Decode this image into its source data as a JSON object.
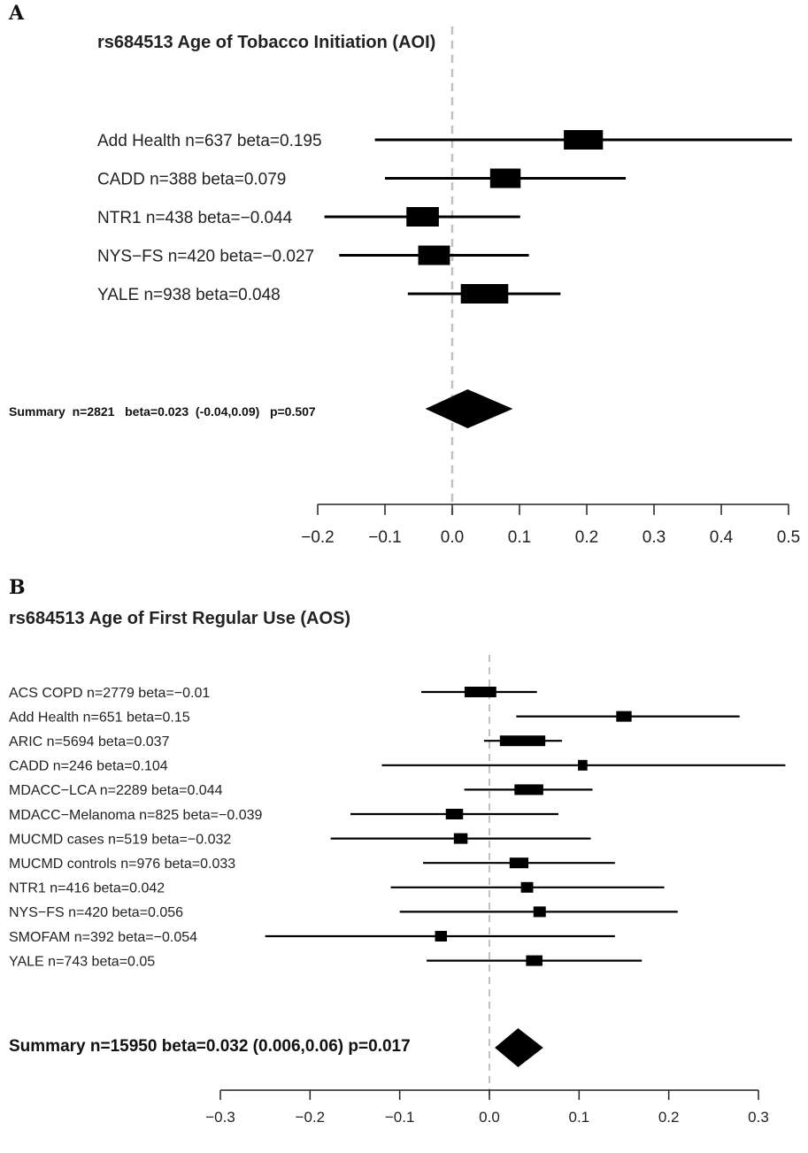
{
  "chart_data": [
    {
      "type": "forest",
      "panel": "A",
      "title": "rs684513 Age of Tobacco Initiation (AOI)",
      "xlim": [
        -0.2,
        0.5
      ],
      "ticks": [
        "−0.2",
        "−0.1",
        "0.0",
        "0.1",
        "0.2",
        "0.3",
        "0.4",
        "0.5"
      ],
      "reference_line": 0.0,
      "studies": [
        {
          "label": "Add Health n=637 beta=0.195",
          "n": 637,
          "beta": 0.195,
          "ci": [
            -0.115,
            0.505
          ]
        },
        {
          "label": "CADD n=388 beta=0.079",
          "n": 388,
          "beta": 0.079,
          "ci": [
            -0.1,
            0.258
          ]
        },
        {
          "label": "NTR1 n=438 beta=−0.044",
          "n": 438,
          "beta": -0.044,
          "ci": [
            -0.19,
            0.101
          ]
        },
        {
          "label": "NYS−FS n=420 beta=−0.027",
          "n": 420,
          "beta": -0.027,
          "ci": [
            -0.168,
            0.114
          ]
        },
        {
          "label": "YALE n=938 beta=0.048",
          "n": 938,
          "beta": 0.048,
          "ci": [
            -0.066,
            0.161
          ]
        }
      ],
      "summary": {
        "label": "Summary  n=2821   beta=0.023  (-0.04,0.09)   p=0.507",
        "n": 2821,
        "beta": 0.023,
        "ci": [
          -0.04,
          0.09
        ],
        "p": 0.507
      }
    },
    {
      "type": "forest",
      "panel": "B",
      "title": "rs684513 Age of First Regular Use (AOS)",
      "xlim": [
        -0.3,
        0.3
      ],
      "ticks": [
        "−0.3",
        "−0.2",
        "−0.1",
        "0.0",
        "0.1",
        "0.2",
        "0.3"
      ],
      "reference_line": 0.0,
      "studies": [
        {
          "label": "ACS COPD n=2779 beta=−0.01",
          "n": 2779,
          "beta": -0.01,
          "ci": [
            -0.076,
            0.053
          ]
        },
        {
          "label": "Add Health n=651 beta=0.15",
          "n": 651,
          "beta": 0.15,
          "ci": [
            0.03,
            0.279
          ]
        },
        {
          "label": "ARIC n=5694 beta=0.037",
          "n": 5694,
          "beta": 0.037,
          "ci": [
            -0.006,
            0.081
          ]
        },
        {
          "label": "CADD n=246 beta=0.104",
          "n": 246,
          "beta": 0.104,
          "ci": [
            -0.12,
            0.33
          ]
        },
        {
          "label": "MDACC−LCA n=2289 beta=0.044",
          "n": 2289,
          "beta": 0.044,
          "ci": [
            -0.028,
            0.115
          ]
        },
        {
          "label": "MDACC−Melanoma n=825 beta=−0.039",
          "n": 825,
          "beta": -0.039,
          "ci": [
            -0.155,
            0.077
          ]
        },
        {
          "label": "MUCMD cases n=519 beta=−0.032",
          "n": 519,
          "beta": -0.032,
          "ci": [
            -0.177,
            0.113
          ]
        },
        {
          "label": "MUCMD controls n=976 beta=0.033",
          "n": 976,
          "beta": 0.033,
          "ci": [
            -0.074,
            0.14
          ]
        },
        {
          "label": "NTR1 n=416 beta=0.042",
          "n": 416,
          "beta": 0.042,
          "ci": [
            -0.11,
            0.195
          ]
        },
        {
          "label": "NYS−FS n=420 beta=0.056",
          "n": 420,
          "beta": 0.056,
          "ci": [
            -0.1,
            0.21
          ]
        },
        {
          "label": "SMOFAM n=392 beta=−0.054",
          "n": 392,
          "beta": -0.054,
          "ci": [
            -0.25,
            0.14
          ]
        },
        {
          "label": "YALE n=743 beta=0.05",
          "n": 743,
          "beta": 0.05,
          "ci": [
            -0.07,
            0.17
          ]
        }
      ],
      "summary": {
        "label": "Summary n=15950 beta=0.032 (0.006,0.06) p=0.017",
        "n": 15950,
        "beta": 0.032,
        "ci": [
          0.006,
          0.06
        ],
        "p": 0.017
      }
    }
  ]
}
